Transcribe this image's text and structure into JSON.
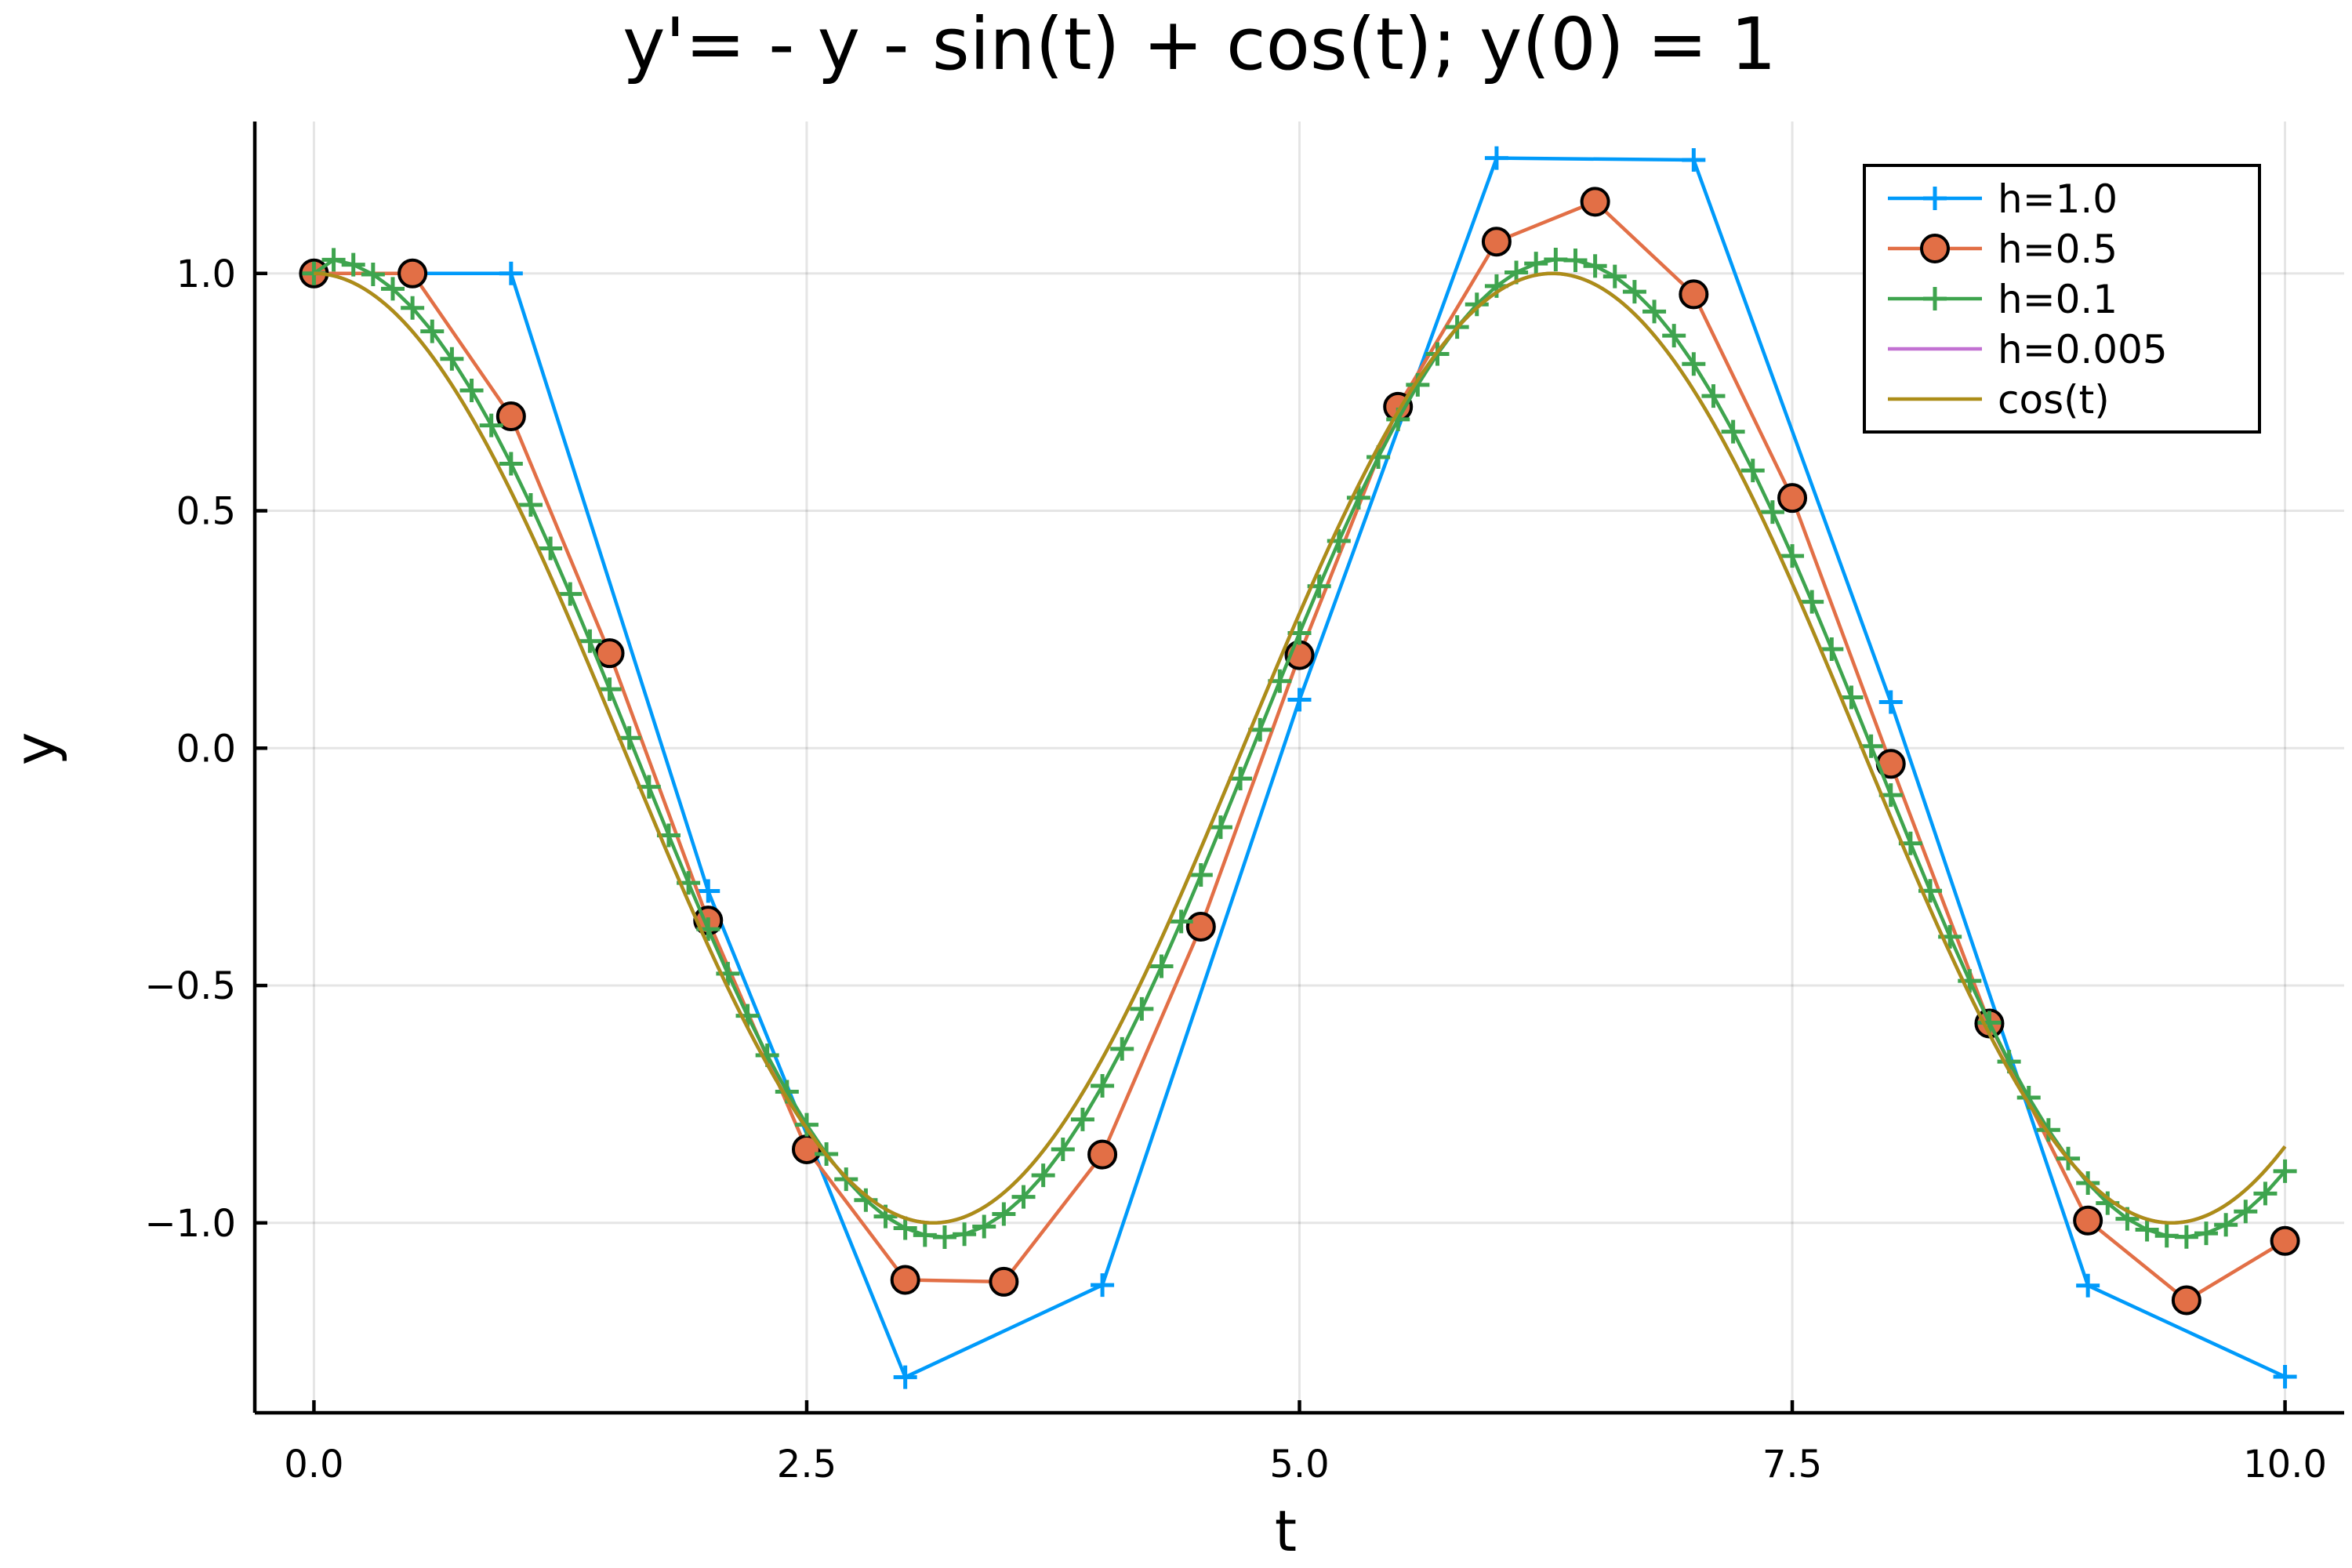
{
  "chart_data": {
    "type": "line",
    "title": "y'= - y - sin(t) + cos(t); y(0) = 1",
    "xlabel": "t",
    "ylabel": "y",
    "xlim": [
      -0.3,
      10.3
    ],
    "ylim": [
      -1.4,
      1.32
    ],
    "grid": true,
    "legend_position": "top-right",
    "x_ticks": [
      0,
      2.5,
      5,
      7.5,
      10
    ],
    "x_tick_labels": [
      "0.0",
      "2.5",
      "5.0",
      "7.5",
      "10.0"
    ],
    "y_ticks": [
      -1,
      -0.5,
      0,
      0.5,
      1
    ],
    "y_tick_labels": [
      "−1.0",
      "−0.5",
      "0.0",
      "0.5",
      "1.0"
    ],
    "series": [
      {
        "name": "h=1.0",
        "color": "#009AFA",
        "marker": "cross",
        "x": [
          0,
          1,
          2,
          3,
          4,
          5,
          6,
          7,
          8,
          9,
          10
        ],
        "y": [
          1.0,
          1.0,
          -0.301,
          -1.325,
          -1.131,
          0.102,
          1.243,
          1.239,
          0.097,
          -1.132,
          -1.324
        ]
      },
      {
        "name": "h=0.5",
        "color": "#E26F46",
        "marker": "circle",
        "x": [
          0,
          0.5,
          1,
          1.5,
          2,
          2.5,
          3,
          3.5,
          4,
          4.5,
          5,
          5.5,
          6,
          6.5,
          7,
          7.5,
          8,
          8.5,
          9,
          9.5,
          10
        ],
        "y": [
          1.0,
          1.0,
          0.699,
          0.2,
          -0.363,
          -0.845,
          -1.12,
          -1.124,
          -0.856,
          -0.376,
          0.196,
          0.719,
          1.067,
          1.151,
          0.956,
          0.527,
          -0.033,
          -0.58,
          -0.995,
          -1.163,
          -1.038
        ]
      },
      {
        "name": "h=0.1",
        "color": "#3EA44E",
        "marker": "cross",
        "step": 0.1,
        "amplitude": 1.03,
        "phase_lag": 0.05
      },
      {
        "name": "h=0.005",
        "color": "#C271D2",
        "marker": "none",
        "step": 0.005,
        "amplitude": 1.0,
        "phase_lag": 0.0
      },
      {
        "name": "cos(t)",
        "color": "#AC8D18",
        "marker": "none",
        "function": "cos(t)",
        "step": 0.02
      }
    ]
  }
}
